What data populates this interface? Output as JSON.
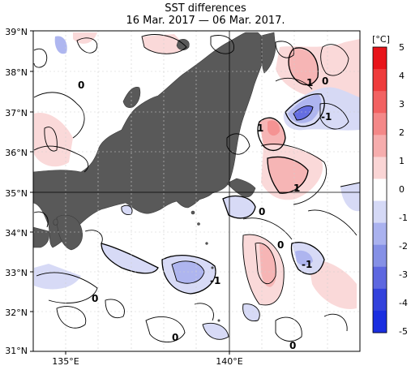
{
  "title": "SST differences",
  "subtitle": "16 Mar. 2017 — 06 Mar. 2017.",
  "map": {
    "lat_labels": [
      "39°N",
      "38°N",
      "37°N",
      "36°N",
      "35°N",
      "34°N",
      "33°N",
      "32°N",
      "31°N"
    ],
    "lon_labels": [
      "135°E",
      "140°E"
    ],
    "lat_range": [
      31,
      39
    ],
    "lon_range": [
      134.0,
      144.0
    ],
    "land_color": "#595959",
    "sea_color": "#ffffff",
    "contour_labels": [
      "1",
      "0",
      "-1",
      "1",
      "1",
      "0",
      "-1",
      "0",
      "0",
      "-1",
      "0",
      "0",
      "0"
    ]
  },
  "colorbar": {
    "unit": "[°C]",
    "ticks": [
      "5",
      "4",
      "3",
      "2",
      "1",
      "0",
      "-1",
      "-2",
      "-3",
      "-4",
      "-5"
    ],
    "colors": [
      "#e8141a",
      "#ee3c3c",
      "#f26262",
      "#f48888",
      "#f6adad",
      "#fad5d5",
      "#ffffff",
      "#d5d9f6",
      "#aab2ef",
      "#8590e6",
      "#5d67e0",
      "#3342dc",
      "#1a2ee0"
    ]
  }
}
